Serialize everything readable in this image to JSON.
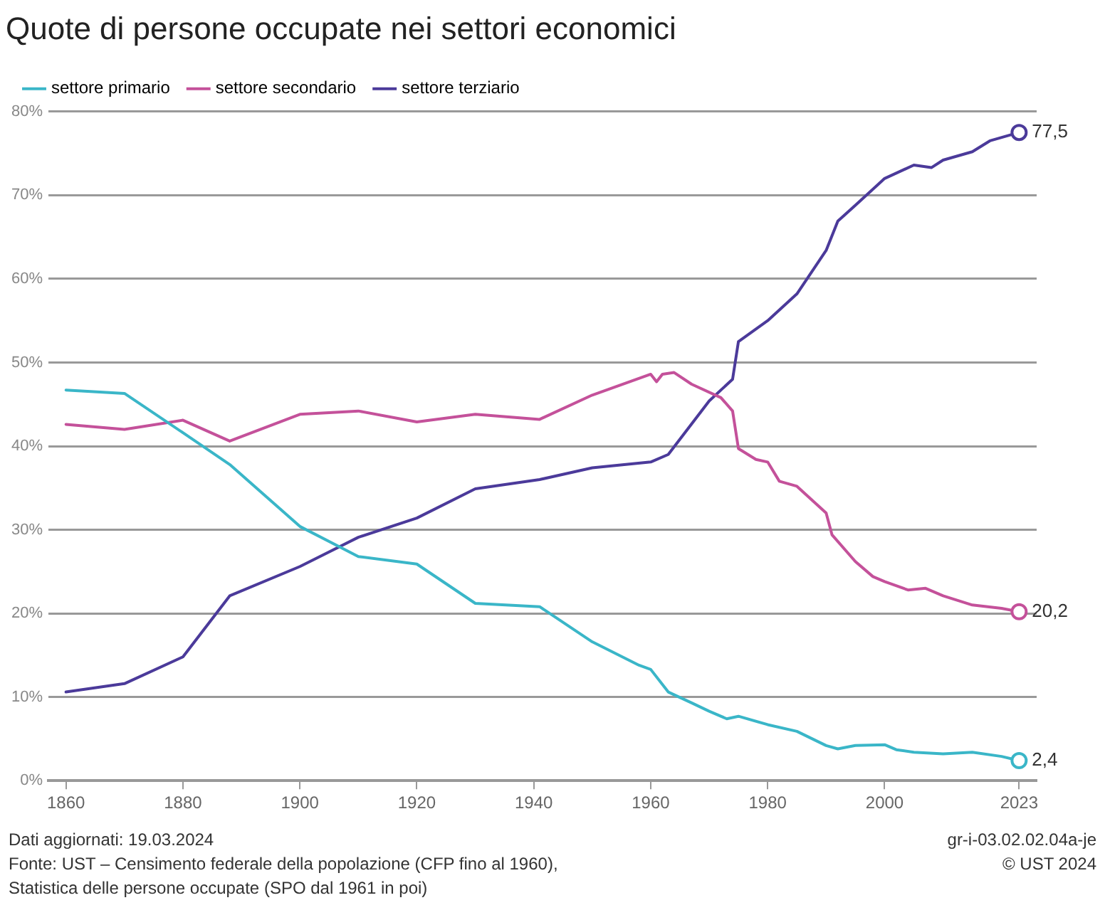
{
  "chart_data": {
    "type": "line",
    "title": "Quote di persone occupate nei settori economici",
    "xlim": [
      1857,
      2026
    ],
    "xticks": [
      1860,
      1880,
      1900,
      1920,
      1940,
      1960,
      1980,
      2000,
      2023
    ],
    "ylim": [
      0,
      80
    ],
    "yticks": [
      {
        "value": 0,
        "label": "0%"
      },
      {
        "value": 10,
        "label": "10%"
      },
      {
        "value": 20,
        "label": "20%"
      },
      {
        "value": 30,
        "label": "30%"
      },
      {
        "value": 40,
        "label": "40%"
      },
      {
        "value": 50,
        "label": "50%"
      },
      {
        "value": 60,
        "label": "60%"
      },
      {
        "value": 70,
        "label": "70%"
      },
      {
        "value": 80,
        "label": "80%"
      }
    ],
    "grid": "y",
    "legend": "top left",
    "line_style": "solid",
    "series": [
      {
        "name": "settore primario",
        "color": "#3ab6c8",
        "x": [
          1860,
          1870,
          1880,
          1888,
          1900,
          1910,
          1920,
          1930,
          1941,
          1950,
          1958,
          1960,
          1963,
          1967,
          1970,
          1973,
          1975,
          1980,
          1985,
          1990,
          1992,
          1995,
          2000,
          2002,
          2005,
          2010,
          2015,
          2020,
          2023
        ],
        "values": [
          46.7,
          46.3,
          41.6,
          37.8,
          30.4,
          26.8,
          25.9,
          21.2,
          20.8,
          16.6,
          13.8,
          13.3,
          10.6,
          9.3,
          8.3,
          7.4,
          7.7,
          6.7,
          5.9,
          4.2,
          3.8,
          4.2,
          4.3,
          3.7,
          3.4,
          3.2,
          3.4,
          2.9,
          2.4
        ],
        "value_labels": [
          null,
          null,
          null,
          null,
          null,
          null,
          null,
          null,
          null,
          null,
          null,
          null,
          null,
          null,
          null,
          null,
          null,
          null,
          null,
          null,
          null,
          null,
          null,
          null,
          null,
          null,
          null,
          null,
          "2,4"
        ]
      },
      {
        "name": "settore secondario",
        "color": "#c4519a",
        "x": [
          1860,
          1870,
          1880,
          1888,
          1900,
          1910,
          1920,
          1930,
          1941,
          1950,
          1960,
          1961,
          1962,
          1964,
          1967,
          1972,
          1974,
          1975,
          1978,
          1980,
          1982,
          1985,
          1990,
          1991,
          1995,
          1998,
          2000,
          2004,
          2007,
          2010,
          2015,
          2020,
          2023
        ],
        "values": [
          42.6,
          42.0,
          43.1,
          40.6,
          43.8,
          44.2,
          42.9,
          43.8,
          43.2,
          46.1,
          48.6,
          47.7,
          48.6,
          48.8,
          47.4,
          45.8,
          44.2,
          39.7,
          38.4,
          38.1,
          35.8,
          35.2,
          32.0,
          29.4,
          26.2,
          24.4,
          23.8,
          22.8,
          23.0,
          22.1,
          21.0,
          20.6,
          20.2
        ],
        "value_labels": [
          null,
          null,
          null,
          null,
          null,
          null,
          null,
          null,
          null,
          null,
          null,
          null,
          null,
          null,
          null,
          null,
          null,
          null,
          null,
          null,
          null,
          null,
          null,
          null,
          null,
          null,
          null,
          null,
          null,
          null,
          null,
          null,
          "20,2"
        ]
      },
      {
        "name": "settore terziario",
        "color": "#4b3a9a",
        "x": [
          1860,
          1870,
          1880,
          1888,
          1900,
          1910,
          1920,
          1930,
          1941,
          1950,
          1960,
          1963,
          1970,
          1974,
          1975,
          1980,
          1985,
          1990,
          1992,
          1995,
          2000,
          2005,
          2008,
          2010,
          2015,
          2018,
          2023
        ],
        "values": [
          10.6,
          11.6,
          14.8,
          22.1,
          25.6,
          29.1,
          31.4,
          34.9,
          36.0,
          37.4,
          38.1,
          39.0,
          45.4,
          48.0,
          52.5,
          55.0,
          58.2,
          63.4,
          66.9,
          68.8,
          72.0,
          73.6,
          73.3,
          74.2,
          75.2,
          76.5,
          77.5
        ],
        "value_labels": [
          null,
          null,
          null,
          null,
          null,
          null,
          null,
          null,
          null,
          null,
          null,
          null,
          null,
          null,
          null,
          null,
          null,
          null,
          null,
          null,
          null,
          null,
          null,
          null,
          null,
          null,
          "77,5"
        ]
      }
    ],
    "annotations": [
      "Dati aggiornati: 19.03.2024",
      "Fonte: UST – Censimento federale della popolazione (CFP fino al 1960),\nStatistica delle persone occupate (SPO dal 1961 in poi)",
      "gr-i-03.02.02.04a-je\n© UST 2024"
    ]
  }
}
